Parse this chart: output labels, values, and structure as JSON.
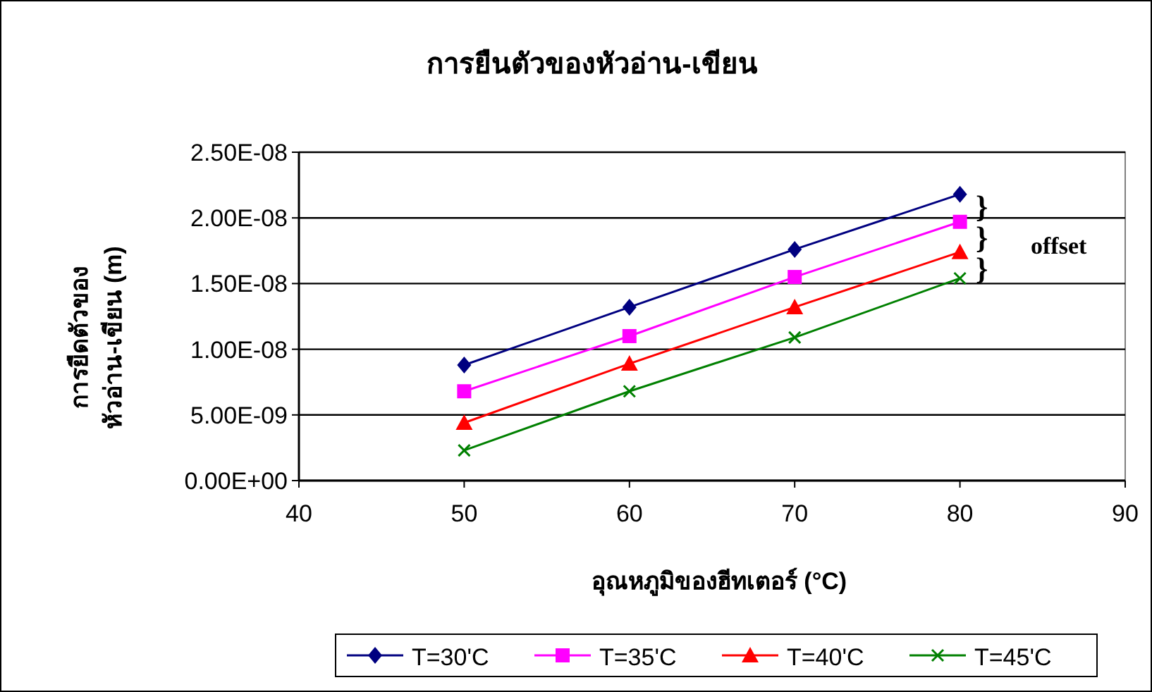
{
  "chart_data": {
    "type": "line",
    "title": "การยืนตัวของหัวอ่าน-เขียน",
    "xlabel": "อุณหภูมิของฮีทเตอร์ (°C)",
    "ylabel": "การยืดตัวของ\nหัวอ่าน-เขียน (m)",
    "x": [
      50,
      60,
      70,
      80
    ],
    "series": [
      {
        "name": "T=30'C",
        "color": "#000080",
        "marker": "diamond",
        "values": [
          8.8e-09,
          1.32e-08,
          1.76e-08,
          2.18e-08
        ]
      },
      {
        "name": "T=35'C",
        "color": "#ff00ff",
        "marker": "square",
        "values": [
          6.8e-09,
          1.1e-08,
          1.55e-08,
          1.97e-08
        ]
      },
      {
        "name": "T=40'C",
        "color": "#ff0000",
        "marker": "triangle",
        "values": [
          4.4e-09,
          8.9e-09,
          1.32e-08,
          1.74e-08
        ]
      },
      {
        "name": "T=45'C",
        "color": "#008000",
        "marker": "cross",
        "values": [
          2.3e-09,
          6.8e-09,
          1.09e-08,
          1.54e-08
        ]
      }
    ],
    "xlim": [
      40,
      90
    ],
    "xticks": [
      40,
      50,
      60,
      70,
      80,
      90
    ],
    "ylim": [
      0,
      2.5e-08
    ],
    "yticks": [
      {
        "value": 0,
        "label": "0.00E+00"
      },
      {
        "value": 5e-09,
        "label": "5.00E-09"
      },
      {
        "value": 1e-08,
        "label": "1.00E-08"
      },
      {
        "value": 1.5e-08,
        "label": "1.50E-08"
      },
      {
        "value": 2e-08,
        "label": "2.00E-08"
      },
      {
        "value": 2.5e-08,
        "label": "2.50E-08"
      }
    ],
    "grid": "y",
    "legend": "bottom",
    "line_style": "solid",
    "annotations": [
      "}",
      "}",
      "}",
      "offset"
    ]
  }
}
